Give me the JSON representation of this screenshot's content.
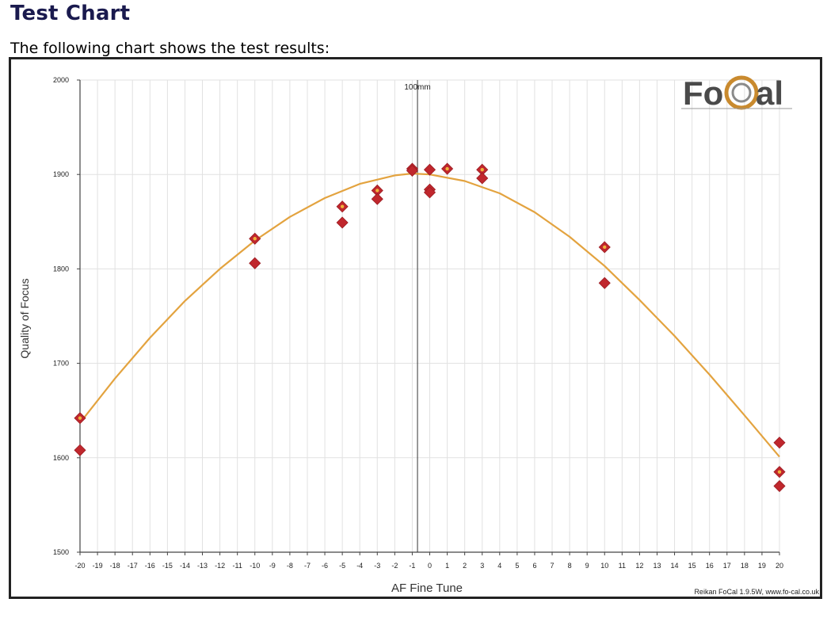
{
  "page": {
    "title": "Test Chart",
    "intro": "The following chart shows the test results:"
  },
  "colors": {
    "fit_curve": "#e3a33f",
    "point_fill": "#c0272d",
    "point_dot": "#f0b33c",
    "grid": "#e1e1e1",
    "axis": "#444444",
    "title": "#1a1a4e"
  },
  "chart_data": {
    "type": "scatter",
    "title": "",
    "xlabel": "AF Fine Tune",
    "ylabel": "Quality of Focus",
    "xlim": [
      -20,
      20
    ],
    "ylim": [
      1500,
      2000
    ],
    "x_ticks": [
      -20,
      -19,
      -18,
      -17,
      -16,
      -15,
      -14,
      -13,
      -12,
      -11,
      -10,
      -9,
      -8,
      -7,
      -6,
      -5,
      -4,
      -3,
      -2,
      -1,
      0,
      1,
      2,
      3,
      4,
      5,
      6,
      7,
      8,
      9,
      10,
      11,
      12,
      13,
      14,
      15,
      16,
      17,
      18,
      19,
      20
    ],
    "y_ticks": [
      1500,
      1600,
      1700,
      1800,
      1900,
      2000
    ],
    "grid": true,
    "marker_line": {
      "x": -0.7,
      "label": "100mm"
    },
    "points": [
      {
        "x": -20,
        "y": 1642,
        "dot": true
      },
      {
        "x": -20,
        "y": 1608,
        "dot": false
      },
      {
        "x": -10,
        "y": 1832,
        "dot": true
      },
      {
        "x": -10,
        "y": 1806,
        "dot": false
      },
      {
        "x": -5,
        "y": 1866,
        "dot": true
      },
      {
        "x": -5,
        "y": 1849,
        "dot": false
      },
      {
        "x": -3,
        "y": 1883,
        "dot": true
      },
      {
        "x": -3,
        "y": 1874,
        "dot": false
      },
      {
        "x": -1,
        "y": 1906,
        "dot": true
      },
      {
        "x": -1,
        "y": 1904,
        "dot": false
      },
      {
        "x": 0,
        "y": 1905,
        "dot": false
      },
      {
        "x": 0,
        "y": 1884,
        "dot": true
      },
      {
        "x": 0,
        "y": 1881,
        "dot": false
      },
      {
        "x": 1,
        "y": 1906,
        "dot": true
      },
      {
        "x": 3,
        "y": 1905,
        "dot": true
      },
      {
        "x": 3,
        "y": 1896,
        "dot": false
      },
      {
        "x": 10,
        "y": 1823,
        "dot": true
      },
      {
        "x": 10,
        "y": 1785,
        "dot": false
      },
      {
        "x": 20,
        "y": 1616,
        "dot": false
      },
      {
        "x": 20,
        "y": 1585,
        "dot": true
      },
      {
        "x": 20,
        "y": 1570,
        "dot": false
      }
    ],
    "fit_curve": [
      {
        "x": -20,
        "y": 1637
      },
      {
        "x": -18,
        "y": 1684
      },
      {
        "x": -16,
        "y": 1727
      },
      {
        "x": -14,
        "y": 1766
      },
      {
        "x": -12,
        "y": 1800
      },
      {
        "x": -10,
        "y": 1830
      },
      {
        "x": -8,
        "y": 1855
      },
      {
        "x": -6,
        "y": 1875
      },
      {
        "x": -4,
        "y": 1890
      },
      {
        "x": -2,
        "y": 1899
      },
      {
        "x": -1,
        "y": 1901
      },
      {
        "x": 0,
        "y": 1900
      },
      {
        "x": 2,
        "y": 1893
      },
      {
        "x": 4,
        "y": 1880
      },
      {
        "x": 6,
        "y": 1860
      },
      {
        "x": 8,
        "y": 1834
      },
      {
        "x": 10,
        "y": 1803
      },
      {
        "x": 12,
        "y": 1767
      },
      {
        "x": 14,
        "y": 1729
      },
      {
        "x": 16,
        "y": 1688
      },
      {
        "x": 18,
        "y": 1645
      },
      {
        "x": 20,
        "y": 1601
      }
    ],
    "logo": {
      "text": "FoCal"
    },
    "credit": "Reikan FoCal  1.9.5W,  www.fo-cal.co.uk"
  }
}
